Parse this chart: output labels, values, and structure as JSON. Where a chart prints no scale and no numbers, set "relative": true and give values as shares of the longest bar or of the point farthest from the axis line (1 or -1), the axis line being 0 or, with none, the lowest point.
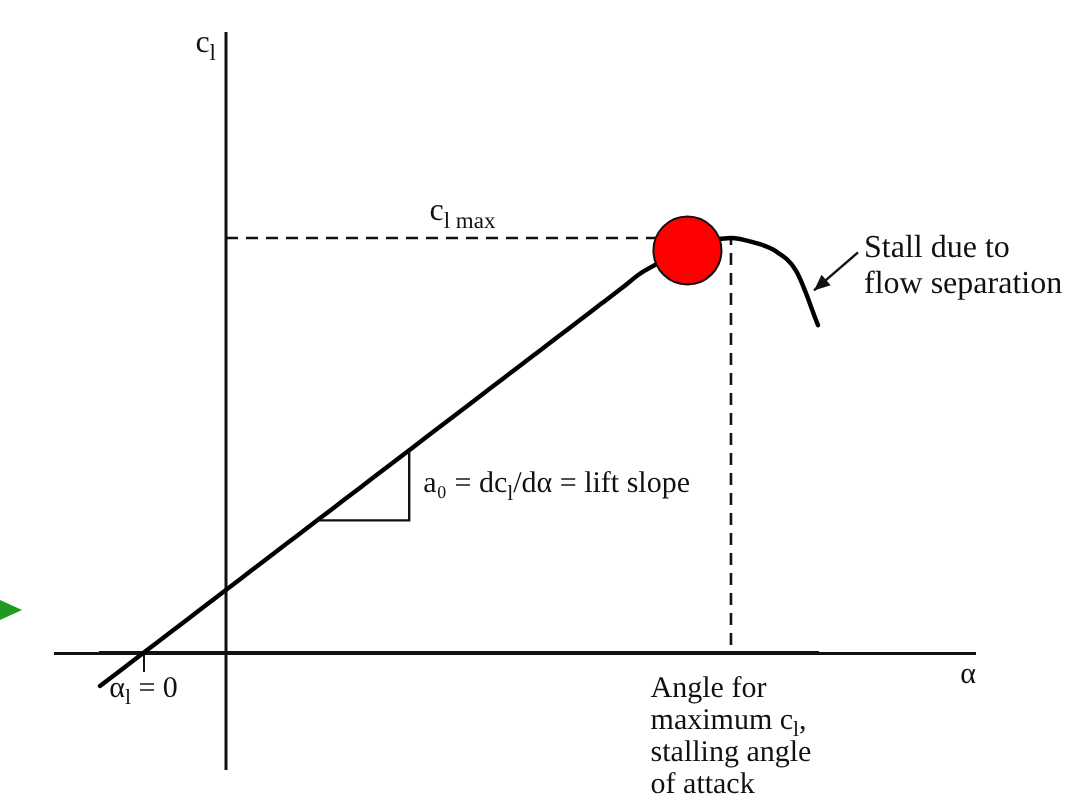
{
  "chart_data": {
    "type": "line",
    "relative": true,
    "xlabel": "α",
    "categories": [
      null,
      null,
      "α$_{l}$ = 0",
      null,
      null,
      null,
      null,
      null,
      null,
      null,
      null,
      null,
      null,
      null,
      null,
      null,
      null,
      null,
      null,
      null,
      null,
      null,
      null,
      null,
      null,
      null,
      null,
      null,
      null,
      "Angle for\nmaximum c$_{l}$,\nstalling angle\nof attack",
      null,
      null,
      null,
      null
    ],
    "series": [
      {
        "color": "#000000",
        "marker": "none",
        "values": [
          -0.08,
          -0.04,
          0,
          0.04,
          0.08,
          0.12,
          0.16,
          0.2,
          0.24,
          0.28,
          0.32,
          0.36,
          0.4,
          0.44,
          0.48,
          0.52,
          0.56,
          0.6,
          0.64,
          0.68,
          0.72,
          0.76,
          0.8,
          0.84,
          0.88,
          0.92,
          null,
          null,
          null,
          1.0,
          0.99,
          0.97,
          0.92,
          0.79
        ]
      },
      {
        "type": "scatter",
        "color": "#ff0000",
        "marker": "circle",
        "values": [
          null,
          null,
          null,
          null,
          null,
          null,
          null,
          null,
          null,
          null,
          null,
          null,
          null,
          null,
          null,
          null,
          null,
          null,
          null,
          null,
          null,
          null,
          null,
          null,
          null,
          null,
          null,
          0.97,
          null,
          null,
          null,
          null,
          null,
          null
        ]
      }
    ],
    "ref_lines": [
      {
        "axis": "y",
        "value": 1,
        "label": "c$_{l max}$",
        "line_style": "dashed"
      }
    ],
    "annotations": [
      "c$_{l}$",
      "Stall due to\nflow separation",
      "a₀ = dc$_{l}$/dα = lift slope"
    ],
    "grid": false,
    "legend": false
  }
}
